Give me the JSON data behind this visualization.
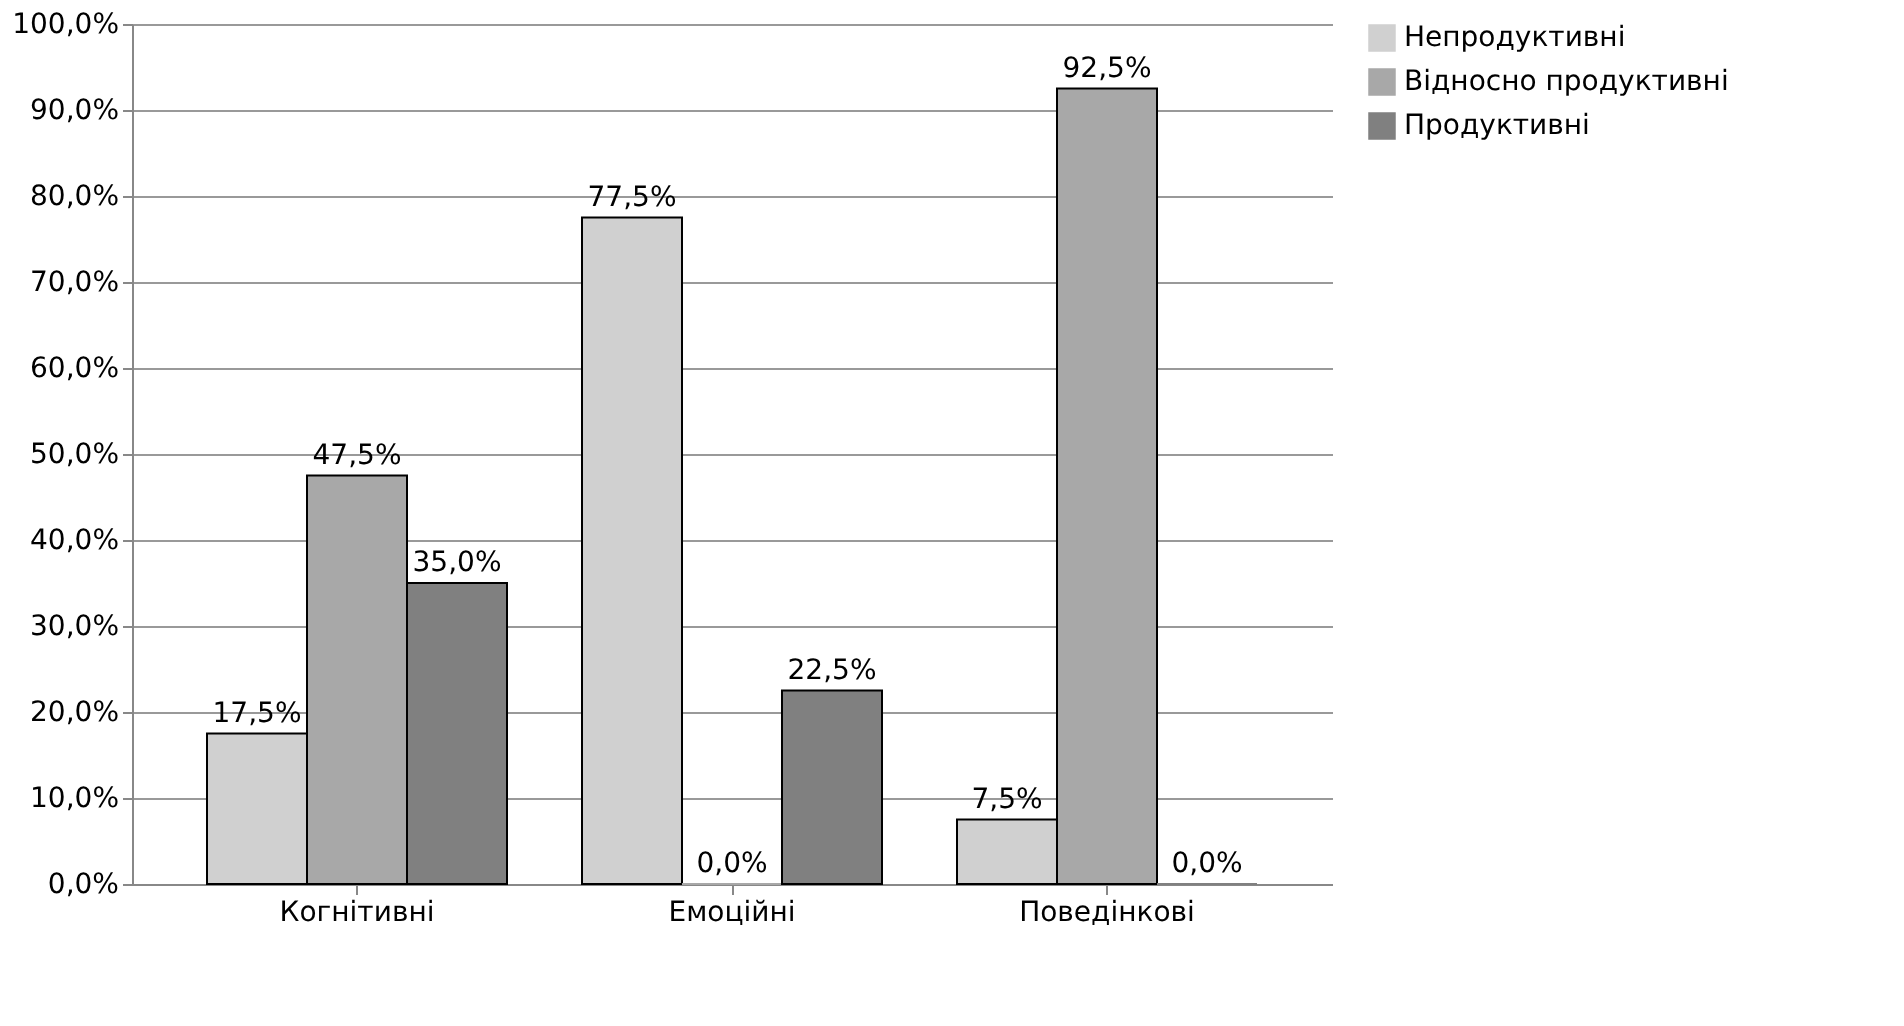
{
  "chart_data": {
    "type": "bar",
    "categories": [
      "Когнітивні",
      "Емоційні",
      "Поведінкові"
    ],
    "series": [
      {
        "name": "Непродуктивні",
        "color": "#d0d0d0",
        "values": [
          17.5,
          77.5,
          7.5
        ],
        "value_labels": [
          "17,5%",
          "77,5%",
          "7,5%"
        ]
      },
      {
        "name": "Відносно продуктивні",
        "color": "#a8a8a8",
        "values": [
          47.5,
          0.0,
          92.5
        ],
        "value_labels": [
          "47,5%",
          "0,0%",
          "92,5%"
        ]
      },
      {
        "name": "Продуктивні",
        "color": "#808080",
        "values": [
          35.0,
          22.5,
          0.0
        ],
        "value_labels": [
          "35,0%",
          "22,5%",
          "0,0%"
        ]
      }
    ],
    "ylim": [
      0,
      100
    ],
    "yticks": [
      {
        "value": 0,
        "label": "0,0%"
      },
      {
        "value": 10,
        "label": "10,0%"
      },
      {
        "value": 20,
        "label": "20,0%"
      },
      {
        "value": 30,
        "label": "30,0%"
      },
      {
        "value": 40,
        "label": "40,0%"
      },
      {
        "value": 50,
        "label": "50,0%"
      },
      {
        "value": 60,
        "label": "60,0%"
      },
      {
        "value": 70,
        "label": "70,0%"
      },
      {
        "value": 80,
        "label": "80,0%"
      },
      {
        "value": 90,
        "label": "90,0%"
      },
      {
        "value": 100,
        "label": "100,0%"
      }
    ],
    "grid": "y",
    "legend": "right"
  }
}
